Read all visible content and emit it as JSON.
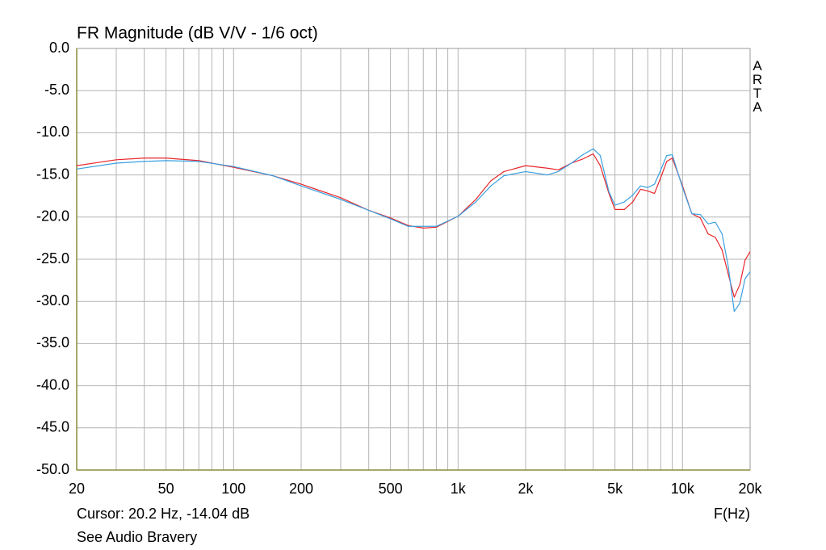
{
  "chart_data": {
    "type": "line",
    "title": "FR Magnitude (dB V/V - 1/6 oct)",
    "annotation": "ARTA",
    "cursor_text": "Cursor: 20.2 Hz, -14.04 dB",
    "xlabel": "F(Hz)",
    "footer": "See Audio Bravery",
    "xscale": "log",
    "grid": true,
    "xlim": [
      20,
      20000
    ],
    "ylim": [
      -50,
      0
    ],
    "xticks": [
      20,
      50,
      100,
      200,
      500,
      {
        "value": 1000,
        "label": "1k"
      },
      {
        "value": 2000,
        "label": "2k"
      },
      {
        "value": 5000,
        "label": "5k"
      },
      {
        "value": 10000,
        "label": "10k"
      },
      {
        "value": 20000,
        "label": "20k"
      }
    ],
    "x_minor_ticks": [
      30,
      40,
      60,
      70,
      80,
      90,
      300,
      400,
      600,
      700,
      800,
      900,
      3000,
      4000,
      6000,
      7000,
      8000,
      9000
    ],
    "yticks": [
      {
        "value": 0,
        "label": "0.0"
      },
      {
        "value": -5,
        "label": "-5.0"
      },
      {
        "value": -10,
        "label": "-10.0"
      },
      {
        "value": -15,
        "label": "-15.0"
      },
      {
        "value": -20,
        "label": "-20.0"
      },
      {
        "value": -25,
        "label": "-25.0"
      },
      {
        "value": -30,
        "label": "-30.0"
      },
      {
        "value": -35,
        "label": "-35.0"
      },
      {
        "value": -40,
        "label": "-40.0"
      },
      {
        "value": -45,
        "label": "-45.0"
      },
      {
        "value": -50,
        "label": "-50.0"
      }
    ],
    "x": [
      20,
      30,
      40,
      50,
      70,
      100,
      150,
      200,
      300,
      400,
      500,
      600,
      700,
      800,
      1000,
      1200,
      1400,
      1600,
      2000,
      2500,
      2800,
      3200,
      3600,
      4000,
      4300,
      4700,
      5000,
      5500,
      6000,
      6500,
      7000,
      7500,
      8000,
      8500,
      9000,
      10000,
      11000,
      12000,
      13000,
      14000,
      15000,
      16000,
      17000,
      18000,
      19000,
      20000
    ],
    "series": [
      {
        "color": "#e8262b",
        "values": [
          -13.9,
          -13.2,
          -13.0,
          -13.0,
          -13.3,
          -14.1,
          -15.1,
          -16.1,
          -17.7,
          -19.2,
          -20.1,
          -21.0,
          -21.3,
          -21.2,
          -19.9,
          -17.9,
          -15.7,
          -14.6,
          -13.9,
          -14.2,
          -14.4,
          -13.6,
          -13.1,
          -12.5,
          -13.9,
          -17.2,
          -19.1,
          -19.1,
          -18.2,
          -16.7,
          -16.9,
          -17.2,
          -15.3,
          -13.4,
          -13.0,
          -16.3,
          -19.6,
          -20.1,
          -22.0,
          -22.4,
          -23.9,
          -26.8,
          -29.5,
          -28.0,
          -25.1,
          -24.1
        ]
      },
      {
        "color": "#3aa0e0",
        "values": [
          -14.3,
          -13.6,
          -13.4,
          -13.3,
          -13.4,
          -14.0,
          -15.1,
          -16.3,
          -17.9,
          -19.2,
          -20.2,
          -21.1,
          -21.1,
          -21.1,
          -19.9,
          -18.2,
          -16.3,
          -15.1,
          -14.6,
          -15.0,
          -14.6,
          -13.6,
          -12.6,
          -11.9,
          -12.7,
          -17.0,
          -18.6,
          -18.2,
          -17.4,
          -16.3,
          -16.5,
          -16.1,
          -14.4,
          -12.7,
          -12.6,
          -16.5,
          -19.6,
          -19.7,
          -20.8,
          -20.6,
          -22.0,
          -25.9,
          -31.2,
          -30.2,
          -27.3,
          -26.5
        ]
      }
    ]
  }
}
